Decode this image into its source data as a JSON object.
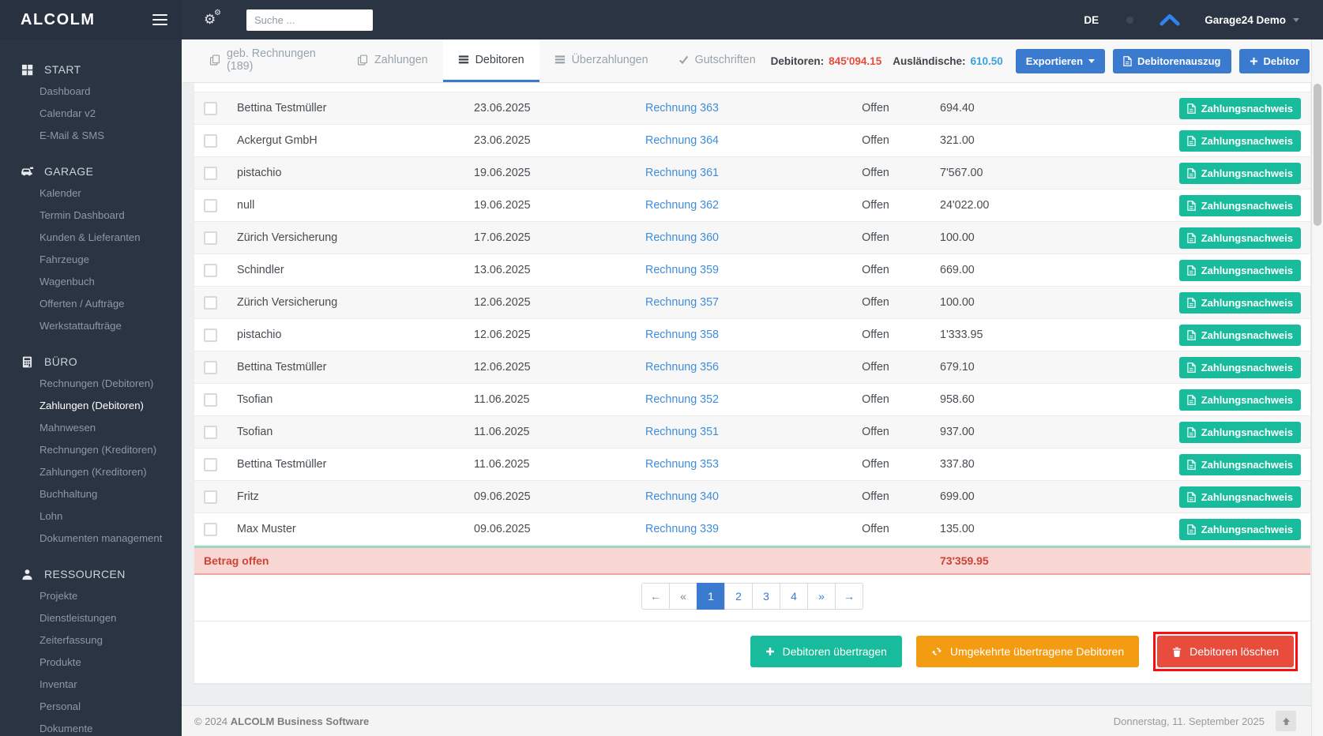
{
  "colors": {
    "sidebar_bg": "#2b3442",
    "accent_blue": "#3a7bd0",
    "link_blue": "#3f8dd8",
    "info_blue": "#36a3dc",
    "success_green": "#18bc9c",
    "warning_orange": "#f39c12",
    "danger_red": "#e74c3c",
    "open_amount_bg": "#f8d7d2",
    "highlight_red": "#fd0d0d"
  },
  "topbar": {
    "search_placeholder": "Suche ...",
    "language": "DE",
    "account": "Garage24 Demo"
  },
  "sidebar": {
    "logo": "ALCOLM",
    "sections": [
      {
        "label": "START",
        "icon": "grid-icon",
        "items": [
          {
            "label": "Dashboard"
          },
          {
            "label": "Calendar v2"
          },
          {
            "label": "E-Mail & SMS"
          }
        ]
      },
      {
        "label": "GARAGE",
        "icon": "car-icon",
        "items": [
          {
            "label": "Kalender"
          },
          {
            "label": "Termin Dashboard"
          },
          {
            "label": "Kunden & Lieferanten"
          },
          {
            "label": "Fahrzeuge"
          },
          {
            "label": "Wagenbuch"
          },
          {
            "label": "Offerten / Aufträge"
          },
          {
            "label": "Werkstattaufträge"
          }
        ]
      },
      {
        "label": "BÜRO",
        "icon": "calculator-icon",
        "items": [
          {
            "label": "Rechnungen (Debitoren)"
          },
          {
            "label": "Zahlungen (Debitoren)",
            "active": true
          },
          {
            "label": "Mahnwesen"
          },
          {
            "label": "Rechnungen (Kreditoren)"
          },
          {
            "label": "Zahlungen (Kreditoren)"
          },
          {
            "label": "Buchhaltung"
          },
          {
            "label": "Lohn"
          },
          {
            "label": "Dokumenten management"
          }
        ]
      },
      {
        "label": "RESSOURCEN",
        "icon": "person-icon",
        "items": [
          {
            "label": "Projekte"
          },
          {
            "label": "Dienstleistungen"
          },
          {
            "label": "Zeiterfassung"
          },
          {
            "label": "Produkte"
          },
          {
            "label": "Inventar"
          },
          {
            "label": "Personal"
          },
          {
            "label": "Dokumente"
          }
        ]
      }
    ]
  },
  "tabs": [
    {
      "label": "geb. Rechnungen (189)",
      "icon": "copy-icon"
    },
    {
      "label": "Zahlungen",
      "icon": "copy-icon"
    },
    {
      "label": "Debitoren",
      "icon": "table-icon",
      "active": true
    },
    {
      "label": "Überzahlungen",
      "icon": "table-icon"
    },
    {
      "label": "Gutschriften",
      "icon": "check-icon"
    }
  ],
  "summary": {
    "debitoren_label": "Debitoren:",
    "debitoren_value": "845'094.15",
    "foreign_label": "Ausländische:",
    "foreign_value": "610.50"
  },
  "toolbar": {
    "export_label": "Exportieren",
    "statement_label": "Debitorenauszug",
    "add_debtor_label": "Debitor"
  },
  "table": {
    "row_action_label": "Zahlungsnachweis",
    "summary_label": "Betrag offen",
    "summary_total": "73'359.95",
    "rows": [
      {
        "name": "Bettina Testmüller",
        "date": "23.06.2025",
        "invoice": "Rechnung 363",
        "status": "Offen",
        "amount": "694.40"
      },
      {
        "name": "Ackergut GmbH",
        "date": "23.06.2025",
        "invoice": "Rechnung 364",
        "status": "Offen",
        "amount": "321.00"
      },
      {
        "name": "pistachio",
        "date": "19.06.2025",
        "invoice": "Rechnung 361",
        "status": "Offen",
        "amount": "7'567.00"
      },
      {
        "name": "null",
        "date": "19.06.2025",
        "invoice": "Rechnung 362",
        "status": "Offen",
        "amount": "24'022.00"
      },
      {
        "name": "Zürich Versicherung",
        "date": "17.06.2025",
        "invoice": "Rechnung 360",
        "status": "Offen",
        "amount": "100.00"
      },
      {
        "name": "Schindler",
        "date": "13.06.2025",
        "invoice": "Rechnung 359",
        "status": "Offen",
        "amount": "669.00"
      },
      {
        "name": "Zürich Versicherung",
        "date": "12.06.2025",
        "invoice": "Rechnung 357",
        "status": "Offen",
        "amount": "100.00"
      },
      {
        "name": "pistachio",
        "date": "12.06.2025",
        "invoice": "Rechnung 358",
        "status": "Offen",
        "amount": "1'333.95"
      },
      {
        "name": "Bettina Testmüller",
        "date": "12.06.2025",
        "invoice": "Rechnung 356",
        "status": "Offen",
        "amount": "679.10"
      },
      {
        "name": "Tsofian",
        "date": "11.06.2025",
        "invoice": "Rechnung 352",
        "status": "Offen",
        "amount": "958.60"
      },
      {
        "name": "Tsofian",
        "date": "11.06.2025",
        "invoice": "Rechnung 351",
        "status": "Offen",
        "amount": "937.00"
      },
      {
        "name": "Bettina Testmüller",
        "date": "11.06.2025",
        "invoice": "Rechnung 353",
        "status": "Offen",
        "amount": "337.80"
      },
      {
        "name": "Fritz",
        "date": "09.06.2025",
        "invoice": "Rechnung 340",
        "status": "Offen",
        "amount": "699.00"
      },
      {
        "name": "Max Muster",
        "date": "09.06.2025",
        "invoice": "Rechnung 339",
        "status": "Offen",
        "amount": "135.00"
      }
    ]
  },
  "pagination": [
    {
      "label": "←",
      "muted": true
    },
    {
      "label": "«",
      "muted": true
    },
    {
      "label": "1",
      "active": true
    },
    {
      "label": "2"
    },
    {
      "label": "3"
    },
    {
      "label": "4"
    },
    {
      "label": "»"
    },
    {
      "label": "→"
    }
  ],
  "actions": [
    {
      "label": "Debitoren übertragen",
      "icon": "plus-icon",
      "style": "success"
    },
    {
      "label": "Umgekehrte übertragene Debitoren",
      "icon": "refresh-icon",
      "style": "warning"
    },
    {
      "label": "Debitoren löschen",
      "icon": "trash-icon",
      "style": "danger",
      "highlighted": true
    }
  ],
  "footer": {
    "copyright": "© 2024",
    "brand": "ALCOLM Business Software",
    "date": "Donnerstag, 11. September 2025"
  }
}
